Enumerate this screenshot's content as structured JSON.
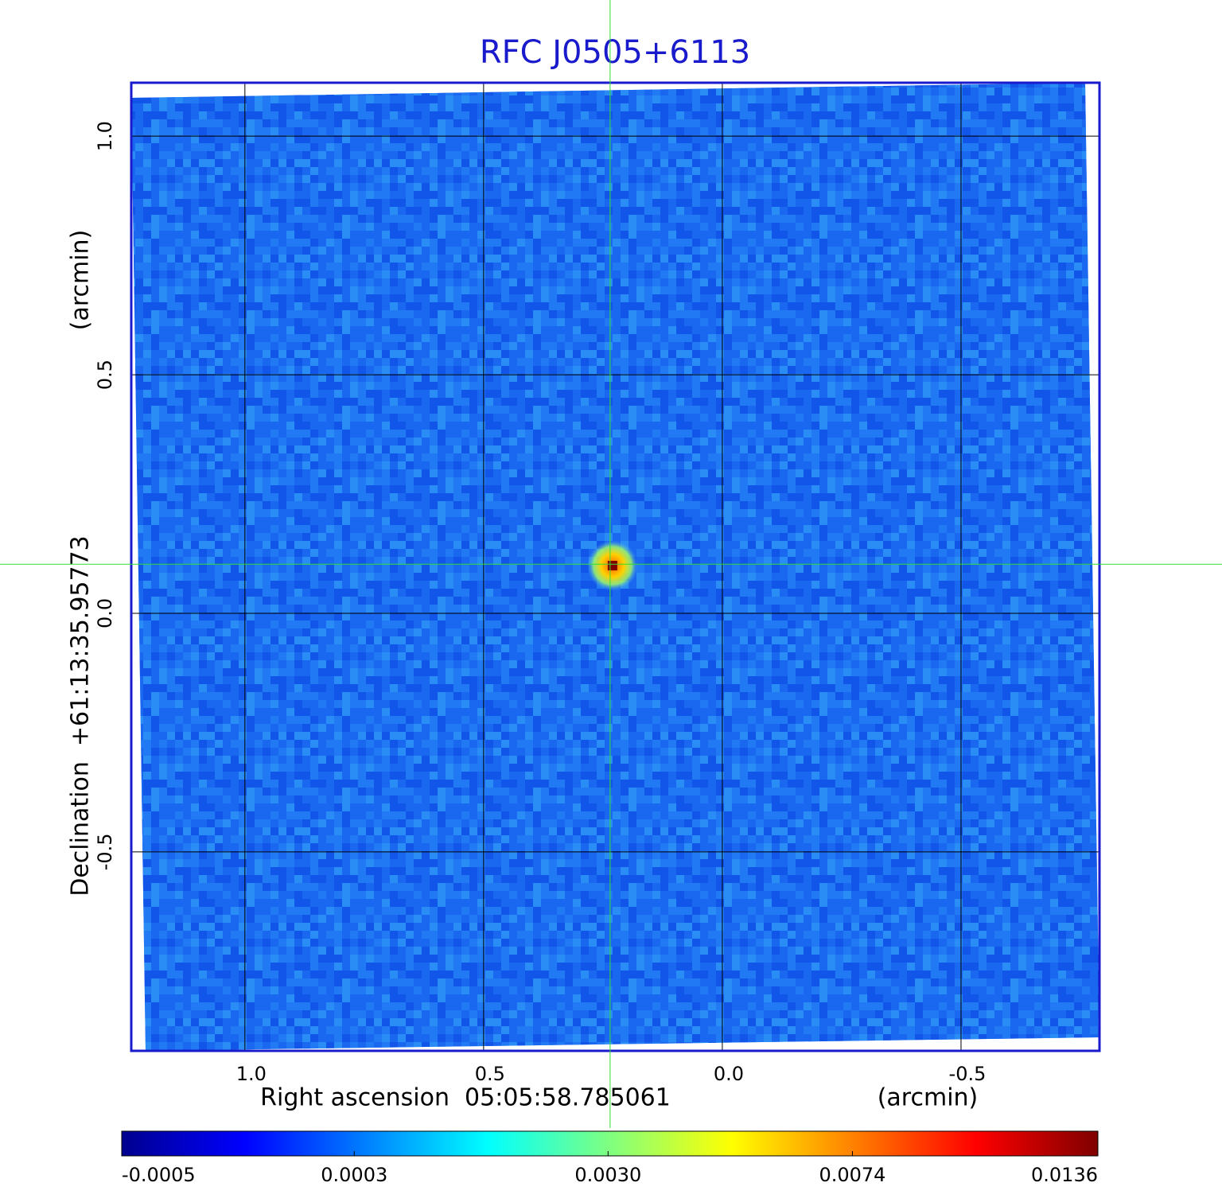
{
  "chart_data": {
    "type": "image",
    "title": "RFC J0505+6113",
    "x_label": "Right ascension  05:05:58.785061",
    "x_unit": "(arcmin)",
    "y_label": "Declination  +61:13:35.95773",
    "y_unit": "(arcmin)",
    "xlim": [
      1.238,
      -0.79
    ],
    "ylim": [
      -0.917,
      1.112
    ],
    "xticks": [
      {
        "value": 1,
        "label": "1.0"
      },
      0.5,
      {
        "value": 0,
        "label": "0.0"
      },
      -0.5
    ],
    "yticks": [
      {
        "value": 1,
        "label": "1.0"
      },
      0.5,
      {
        "value": 0,
        "label": "0.0"
      },
      -0.5
    ],
    "grid": true,
    "crosshair": {
      "x": 0.235,
      "y": 0.103
    },
    "source": {
      "x": 0.23,
      "y": 0.1,
      "peak": 0.0136
    },
    "colormap": "jet",
    "colorbar_scale": "sqrt",
    "clim": [
      -0.0005,
      0.0136
    ],
    "colorbar_ticks": [
      -0.0005,
      0.0003,
      {
        "value": 0.003,
        "label": "0.0030"
      },
      0.0074,
      0.0136
    ]
  }
}
